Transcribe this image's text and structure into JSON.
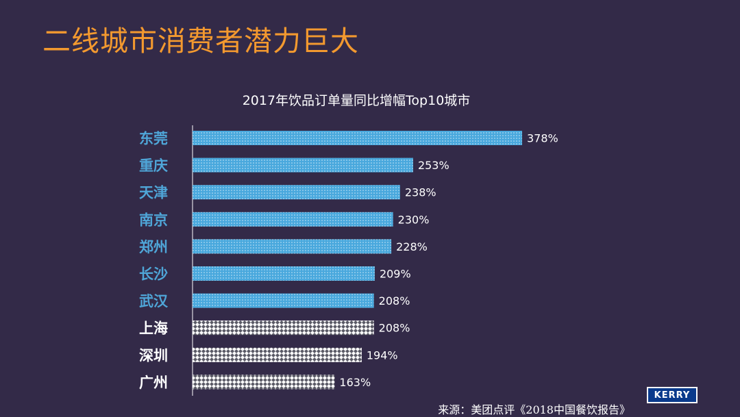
{
  "page": {
    "title": "二线城市消费者潜力巨大",
    "source": "来源：美团点评《2018中国餐饮报告》",
    "logo_text": "KERRY"
  },
  "colors": {
    "background": "#332a48",
    "title": "#f3992f",
    "first_tier_label": "#4fa6d8",
    "bar_blue": "#49a8dd",
    "bar_pattern": "#ffffff",
    "text": "#ffffff"
  },
  "chart_data": {
    "type": "bar",
    "orientation": "horizontal",
    "title": "2017年饮品订单量同比增幅Top10城市",
    "categories": [
      "东莞",
      "重庆",
      "天津",
      "南京",
      "郑州",
      "长沙",
      "武汉",
      "上海",
      "深圳",
      "广州"
    ],
    "values": [
      378,
      253,
      238,
      230,
      228,
      209,
      208,
      208,
      194,
      163
    ],
    "value_labels": [
      "378%",
      "253%",
      "238%",
      "230%",
      "228%",
      "209%",
      "208%",
      "208%",
      "194%",
      "163%"
    ],
    "styles": [
      "blue",
      "blue",
      "blue",
      "blue",
      "blue",
      "blue",
      "blue",
      "checker",
      "checker",
      "checker"
    ],
    "xlim": [
      0,
      378
    ],
    "grid": false,
    "legend": "none"
  }
}
